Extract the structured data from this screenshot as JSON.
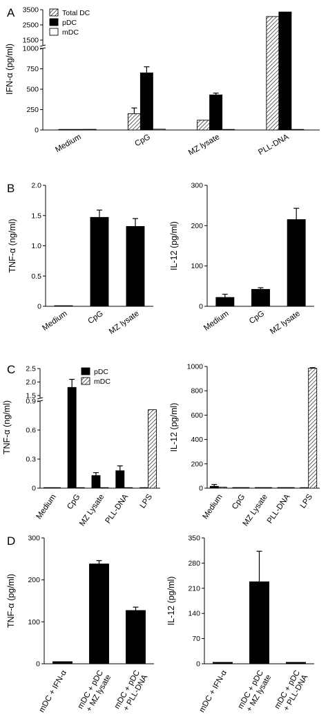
{
  "colors": {
    "black": "#000000",
    "white": "#ffffff",
    "hatch": "#000000"
  },
  "chart_data": [
    {
      "id": "A",
      "panel": "A",
      "type": "bar",
      "ylabel": "IFN-α (pg/ml)",
      "categories": [
        "Medium",
        "CpG",
        "MZ lysate",
        "PLL-DNA"
      ],
      "series": [
        {
          "name": "Total DC",
          "fill": "hatch",
          "values": [
            0,
            200,
            120,
            3050
          ],
          "errors": [
            0,
            70,
            0,
            0
          ]
        },
        {
          "name": "pDC",
          "fill": "black",
          "values": [
            5,
            700,
            430,
            3350
          ],
          "errors": [
            0,
            75,
            22,
            0
          ]
        },
        {
          "name": "mDC",
          "fill": "white",
          "values": [
            8,
            10,
            5,
            5
          ],
          "errors": [
            0,
            0,
            0,
            0
          ]
        }
      ],
      "y_lower_ticks": [
        "0",
        "250",
        "500",
        "750",
        "1000"
      ],
      "y_upper_ticks": [
        "1500",
        "2500",
        "3500"
      ],
      "legend": "top-left"
    },
    {
      "id": "B1",
      "panel": "B",
      "type": "bar",
      "ylabel": "TNF-α (ng/ml)",
      "categories": [
        "Medium",
        "CpG",
        "MZ lysate"
      ],
      "series": [
        {
          "name": "",
          "fill": "black",
          "values": [
            0.01,
            1.47,
            1.32
          ],
          "errors": [
            0,
            0.12,
            0.13
          ]
        }
      ],
      "ylim": [
        0,
        2.0
      ],
      "yticks": [
        "0",
        "0.5",
        "1.0",
        "1.5",
        "2.0"
      ]
    },
    {
      "id": "B2",
      "type": "bar",
      "ylabel": "IL-12 (pg/ml)",
      "categories": [
        "Medium",
        "CpG",
        "MZ lysate"
      ],
      "series": [
        {
          "name": "",
          "fill": "black",
          "values": [
            22,
            42,
            215
          ],
          "errors": [
            8,
            4,
            28
          ]
        }
      ],
      "ylim": [
        0,
        300
      ],
      "yticks": [
        "0",
        "100",
        "200",
        "300"
      ]
    },
    {
      "id": "C1",
      "panel": "C",
      "type": "bar",
      "ylabel": "TNF-α (ng/ml)",
      "categories": [
        "Medium",
        "CpG",
        "MZ Lysate",
        "PLL-DNA",
        "LPS"
      ],
      "series": [
        {
          "name": "pDC",
          "fill": "black",
          "values": [
            0.005,
            1.8,
            0.13,
            0.18,
            0
          ],
          "errors": [
            0,
            0.3,
            0.03,
            0.05,
            0
          ]
        },
        {
          "name": "mDC",
          "fill": "hatch",
          "values": [
            0.005,
            0.005,
            0.005,
            0.005,
            0.81
          ],
          "errors": [
            0,
            0,
            0,
            0,
            0
          ]
        }
      ],
      "y_lower_ticks": [
        "0",
        "0.3",
        "0.6",
        "0.9"
      ],
      "y_upper_ticks": [
        "1.5",
        "2.0",
        "2.5"
      ],
      "legend": "top-center"
    },
    {
      "id": "C2",
      "type": "bar",
      "ylabel": "IL-12 (pg/ml)",
      "categories": [
        "Medium",
        "CpG",
        "MZ Lysate",
        "PLL-DNA",
        "LPS"
      ],
      "series": [
        {
          "name": "pDC",
          "fill": "black",
          "values": [
            15,
            5,
            5,
            5,
            0
          ],
          "errors": [
            15,
            0,
            0,
            0,
            0
          ]
        },
        {
          "name": "mDC",
          "fill": "hatch",
          "values": [
            8,
            5,
            5,
            5,
            985
          ],
          "errors": [
            0,
            0,
            0,
            0,
            5
          ]
        }
      ],
      "ylim": [
        0,
        1000
      ],
      "yticks": [
        "0",
        "200",
        "400",
        "600",
        "800",
        "1000"
      ]
    },
    {
      "id": "D1",
      "panel": "D",
      "type": "bar",
      "ylabel": "TNF-α (pg/ml)",
      "categories": [
        "mDC + IFN-α",
        "mDC + pDC\n+ MZ lysate",
        "mDC + pDC\n+ PLL-DNA"
      ],
      "series": [
        {
          "name": "",
          "fill": "black",
          "values": [
            5,
            238,
            127
          ],
          "errors": [
            0,
            8,
            8
          ]
        }
      ],
      "ylim": [
        0,
        300
      ],
      "yticks": [
        "0",
        "100",
        "200",
        "300"
      ]
    },
    {
      "id": "D2",
      "type": "bar",
      "ylabel": "IL-12 (pg/ml)",
      "categories": [
        "mDC + IFN-α",
        "mDC + pDC\n+ MZ lysate",
        "mDC + pDC\n+ PLL-DNA"
      ],
      "series": [
        {
          "name": "",
          "fill": "black",
          "values": [
            4,
            228,
            4
          ],
          "errors": [
            0,
            85,
            0
          ]
        }
      ],
      "ylim": [
        0,
        350
      ],
      "yticks": [
        "0",
        "70",
        "140",
        "210",
        "280",
        "350"
      ]
    }
  ]
}
